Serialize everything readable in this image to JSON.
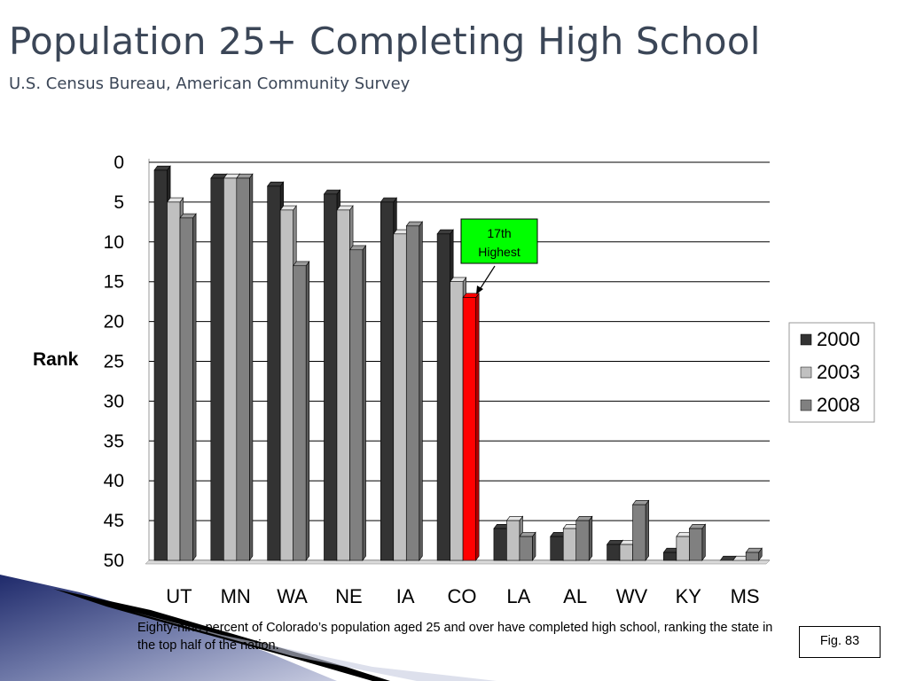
{
  "slide": {
    "title": "Population 25+ Completing High School",
    "subtitle": "U.S. Census Bureau, American Community Survey",
    "caption": "Eighty-nine percent of Colorado’s population aged 25 and over have completed high school, ranking the state in the top half of the nation.",
    "figure_label": "Fig. 83"
  },
  "chart_data": {
    "type": "bar",
    "orientation": "vertical-3d",
    "title": "",
    "ylabel": "Rank",
    "xlabel": "",
    "y_axis_inverted": true,
    "ylim": [
      0,
      50
    ],
    "yticks": [
      0,
      5,
      10,
      15,
      20,
      25,
      30,
      35,
      40,
      45,
      50
    ],
    "grid": true,
    "legend_position": "right",
    "categories": [
      "UT",
      "MN",
      "WA",
      "NE",
      "IA",
      "CO",
      "LA",
      "AL",
      "WV",
      "KY",
      "MS"
    ],
    "series": [
      {
        "name": "2000",
        "color": "#333333",
        "values": [
          1,
          2,
          3,
          4,
          5,
          9,
          46,
          47,
          48,
          49,
          50
        ]
      },
      {
        "name": "2003",
        "color": "#c0c0c0",
        "values": [
          5,
          2,
          6,
          6,
          9,
          15,
          45,
          46,
          48,
          47,
          50
        ]
      },
      {
        "name": "2008",
        "color": "#808080",
        "values": [
          7,
          2,
          13,
          11,
          8,
          17,
          47,
          45,
          43,
          46,
          49
        ]
      }
    ],
    "highlight": {
      "category": "CO",
      "series": "2008",
      "color": "#ff0000"
    },
    "annotation": {
      "line1": "17th",
      "line2": "Highest",
      "background": "#00ff00"
    }
  }
}
